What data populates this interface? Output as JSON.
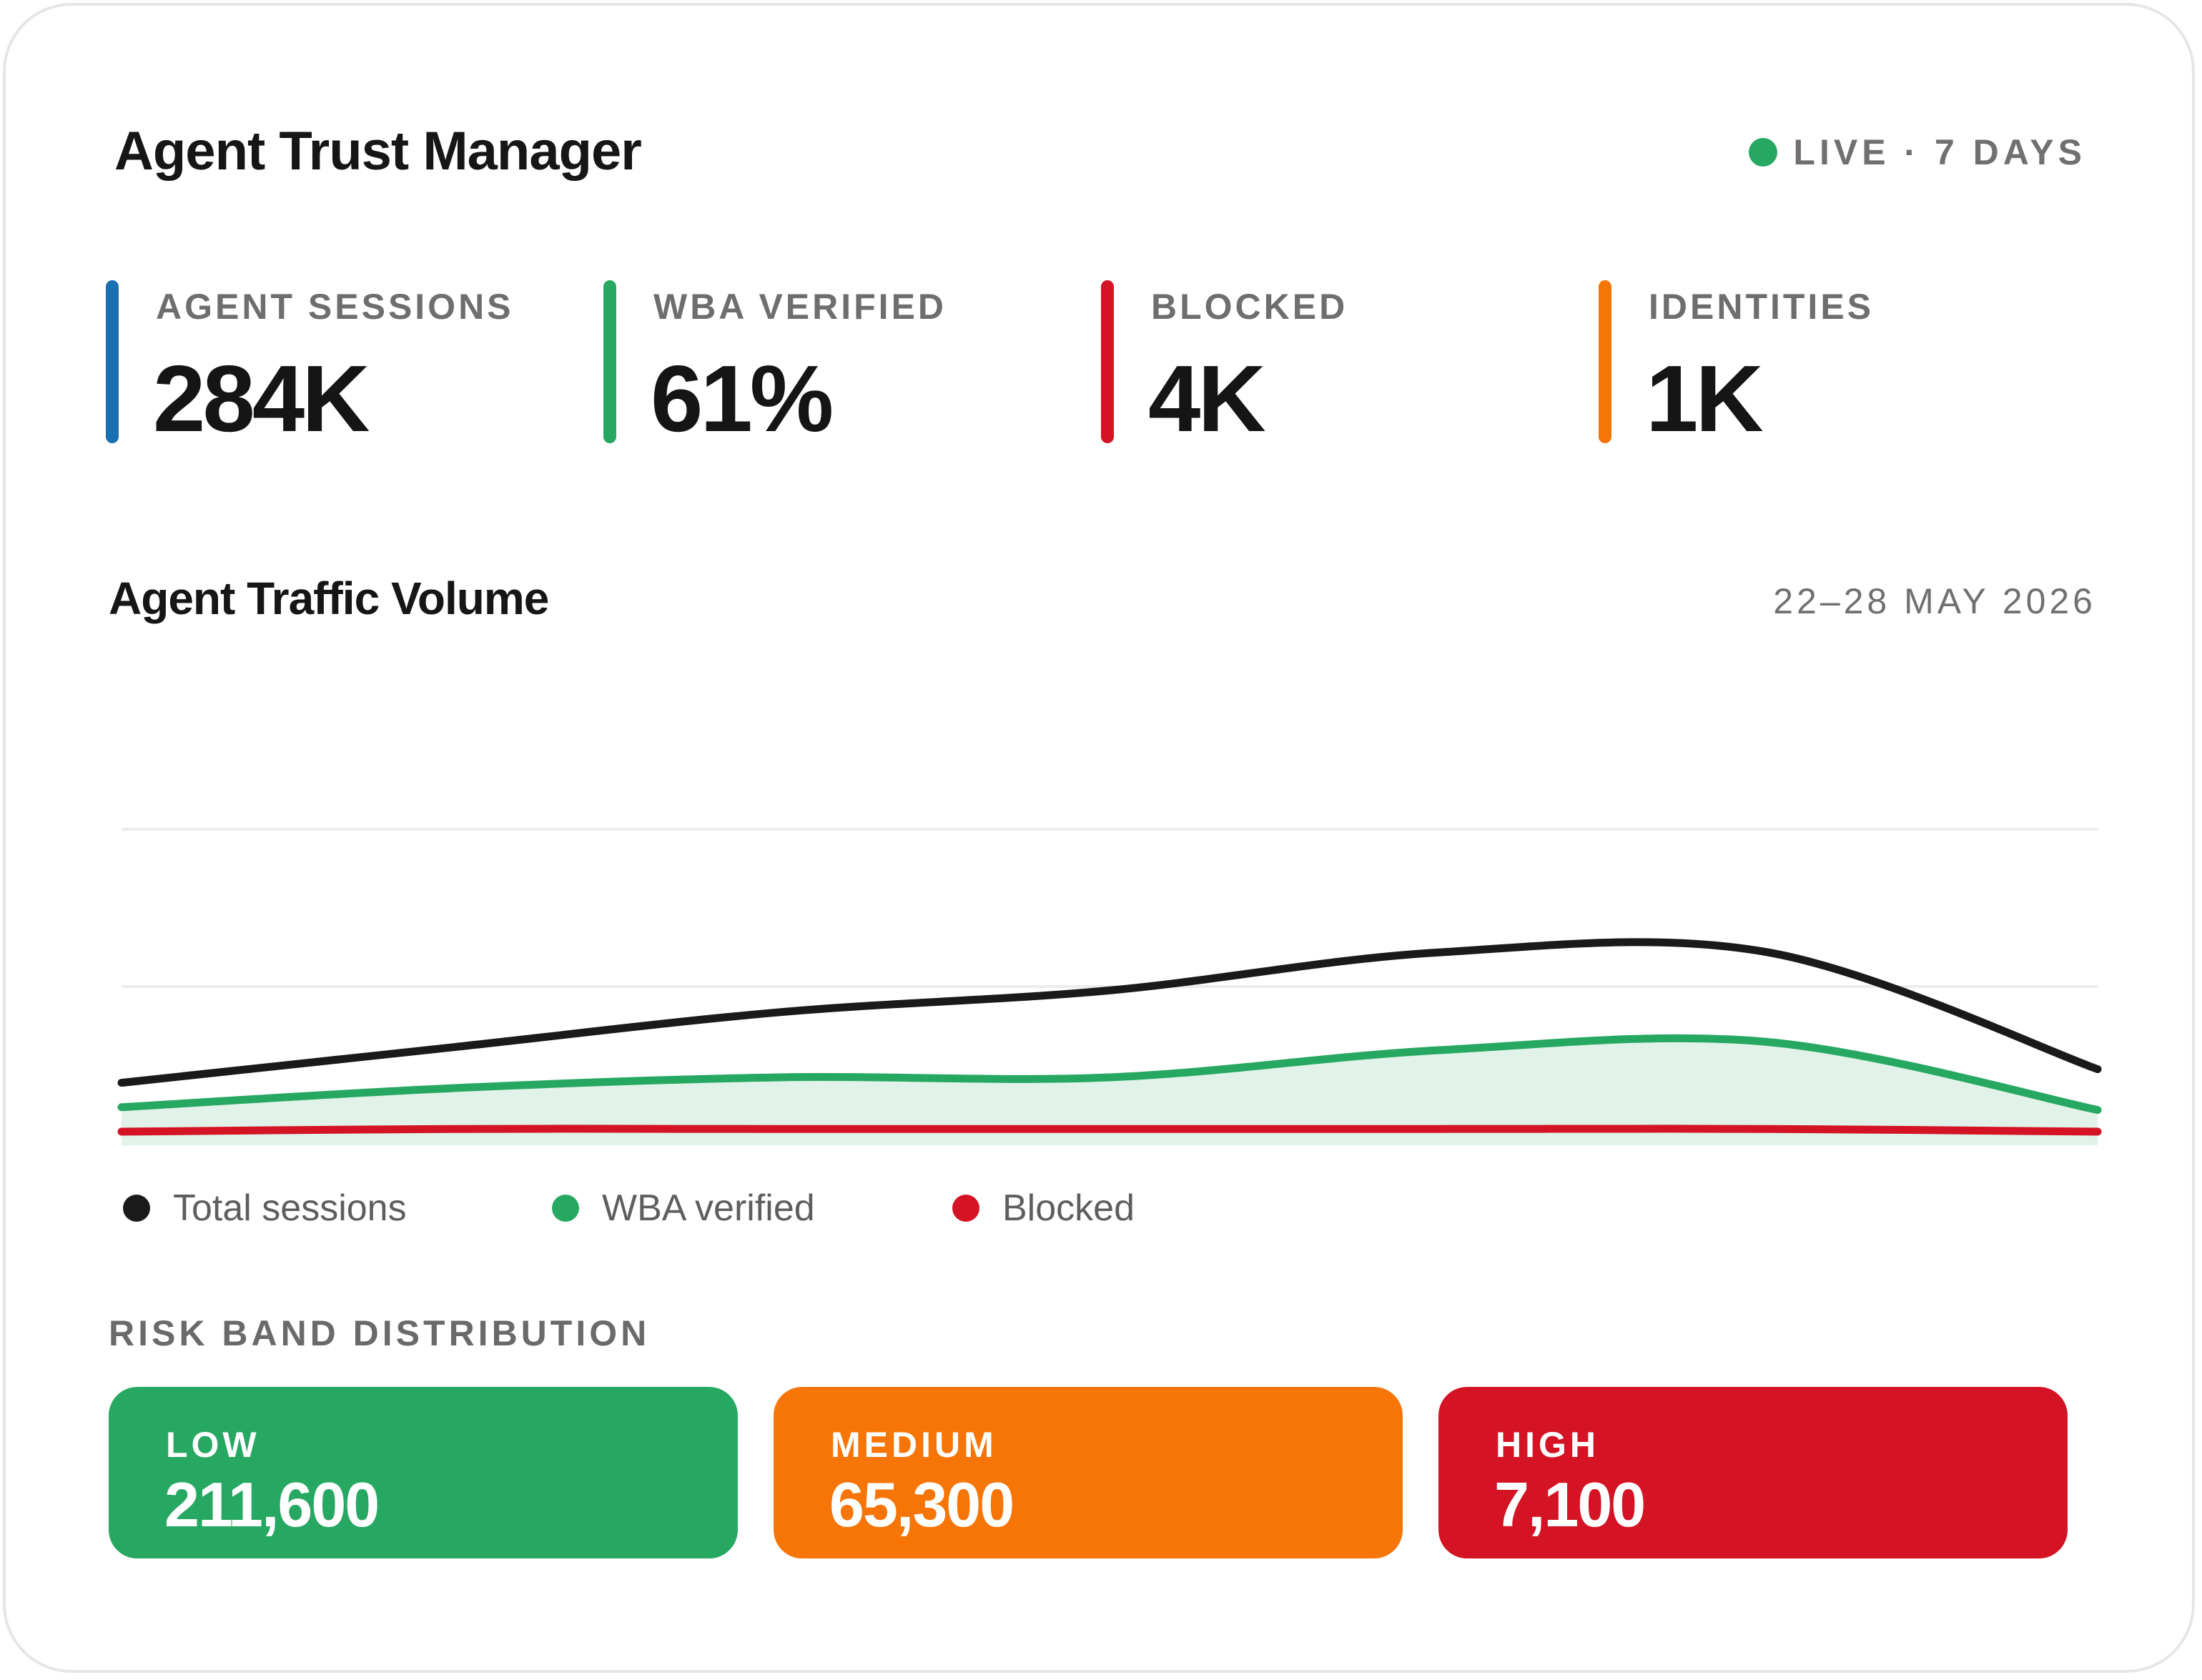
{
  "header": {
    "title": "Agent Trust Manager",
    "live_label": "LIVE · 7 DAYS",
    "live_color": "#27a862"
  },
  "kpis": [
    {
      "label": "AGENT SESSIONS",
      "value": "284K",
      "color": "#1a6fb0"
    },
    {
      "label": "WBA VERIFIED",
      "value": "61%",
      "color": "#27a862"
    },
    {
      "label": "BLOCKED",
      "value": "4K",
      "color": "#d41324"
    },
    {
      "label": "IDENTITIES",
      "value": "1K",
      "color": "#f67506"
    }
  ],
  "traffic": {
    "title": "Agent Traffic Volume",
    "date_range": "22–28 MAY 2026"
  },
  "chart_data": {
    "type": "line",
    "x": [
      1,
      2,
      3,
      4,
      5,
      6,
      7
    ],
    "ylim": [
      0,
      100
    ],
    "grid": true,
    "legend_position": "bottom-left",
    "series": [
      {
        "name": "Total sessions",
        "color": "#1a1a1a",
        "fill": false,
        "values": [
          23,
          36,
          49,
          57,
          71,
          71,
          28
        ]
      },
      {
        "name": "WBA verified",
        "color": "#27a862",
        "fill": true,
        "values": [
          14,
          21,
          25,
          25,
          35,
          38,
          13
        ]
      },
      {
        "name": "Blocked",
        "color": "#d41324",
        "fill": false,
        "values": [
          5,
          6,
          6,
          6,
          6,
          6,
          5
        ]
      }
    ]
  },
  "risk": {
    "title": "RISK BAND DISTRIBUTION",
    "bands": [
      {
        "label": "LOW",
        "value": "211,600",
        "color": "#27a862"
      },
      {
        "label": "MEDIUM",
        "value": "65,300",
        "color": "#f67506"
      },
      {
        "label": "HIGH",
        "value": "7,100",
        "color": "#d41324"
      }
    ]
  }
}
